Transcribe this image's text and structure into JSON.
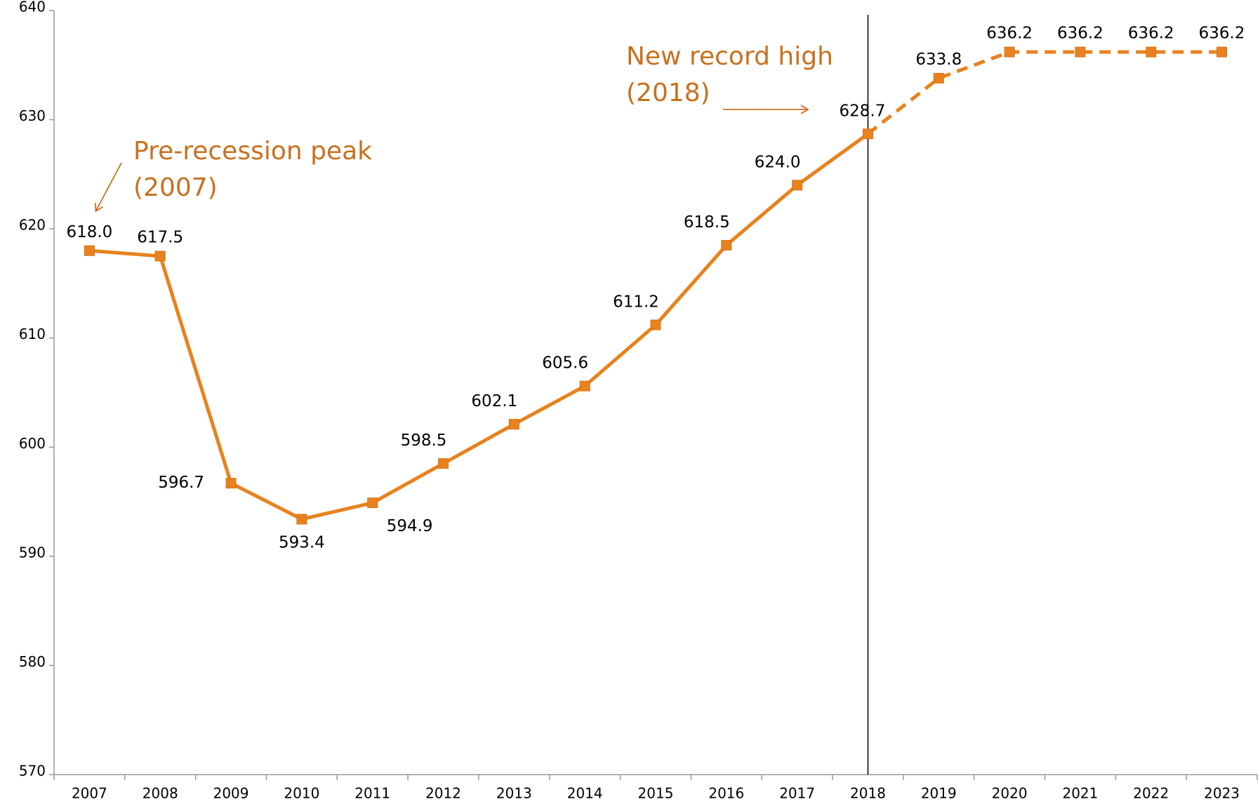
{
  "chart_data": {
    "type": "line",
    "categories": [
      "2007",
      "2008",
      "2009",
      "2010",
      "2011",
      "2012",
      "2013",
      "2014",
      "2015",
      "2016",
      "2017",
      "2018",
      "2019",
      "2020",
      "2021",
      "2022",
      "2023"
    ],
    "series": [
      {
        "color": "#e8821e",
        "values": [
          618.0,
          617.5,
          596.7,
          593.4,
          594.9,
          598.5,
          602.1,
          605.6,
          611.2,
          618.5,
          624.0,
          628.7,
          633.8,
          636.2,
          636.2,
          636.2,
          636.2
        ],
        "value_labels": [
          "618.0",
          "617.5",
          "596.7",
          "593.4",
          "594.9",
          "598.5",
          "602.1",
          "605.6",
          "611.2",
          "618.5",
          "624.0",
          "628.7",
          "633.8",
          "636.2",
          "636.2",
          "636.2",
          "636.2"
        ]
      }
    ],
    "dashed_after": "2018",
    "vline": "2018",
    "ylim": [
      570,
      640
    ],
    "yticks": [
      570,
      580,
      590,
      600,
      610,
      620,
      630,
      640
    ],
    "annotations": [
      {
        "lines": [
          "Pre-recession peak",
          "(2007)"
        ]
      },
      {
        "lines": [
          "New record high",
          "(2018)"
        ]
      }
    ]
  }
}
